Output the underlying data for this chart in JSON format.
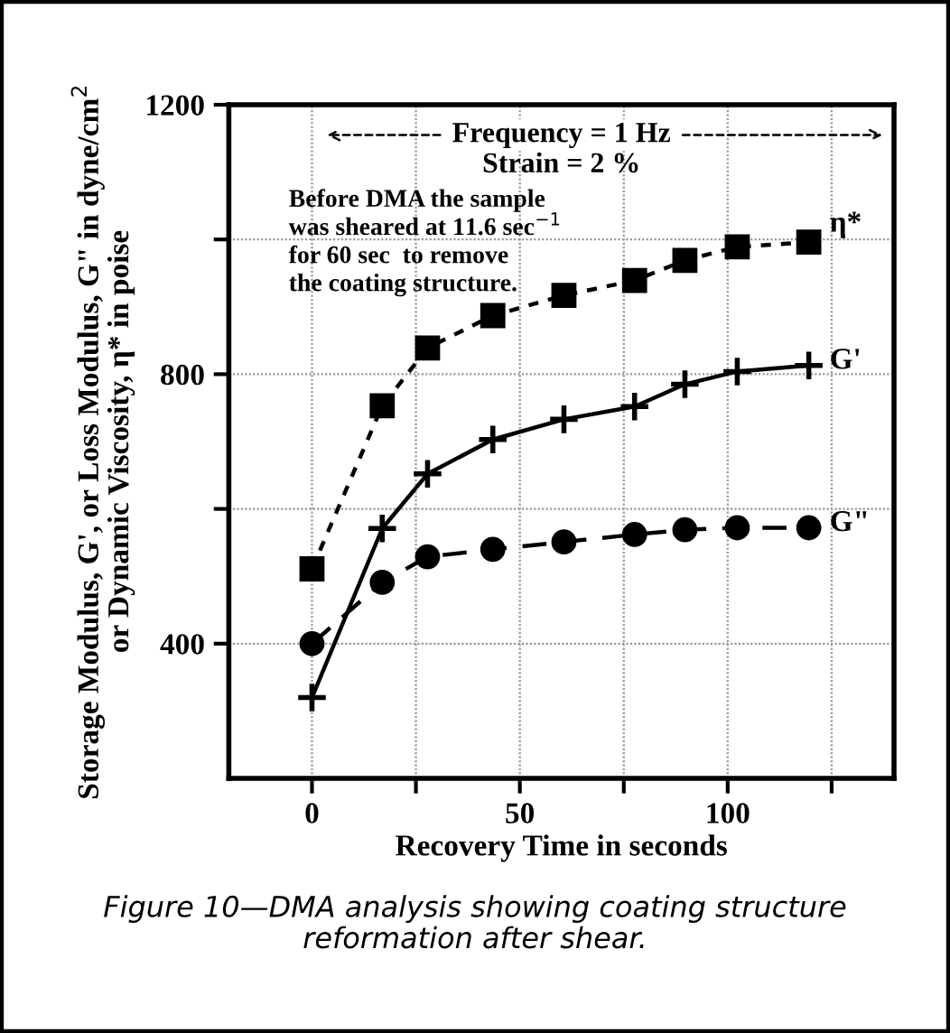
{
  "chart_data": {
    "type": "line",
    "xlabel": "Recovery Time in seconds",
    "ylabel": "Storage Modulus, G', or Loss Modulus, G\" in dyne/cm$^{2}$\nor Dynamic Viscosity, η* in poise",
    "xlim": [
      -20,
      140
    ],
    "xticks": [
      0,
      {
        "value": 25,
        "label": null
      },
      50,
      {
        "value": 75,
        "label": null
      },
      100,
      {
        "value": 125,
        "label": null
      }
    ],
    "ylim": [
      200,
      1200
    ],
    "yticks": [
      400,
      {
        "value": 600,
        "label": null
      },
      800,
      {
        "value": 1000,
        "label": null
      },
      1200
    ],
    "grid": true,
    "legend": false,
    "series": [
      {
        "name": "η*",
        "color": "#000000",
        "marker": "square",
        "line_style": "dotted",
        "x": [
          0,
          16.9,
          27.8,
          43.5,
          60.6,
          77.6,
          89.7,
          102.3,
          119.5
        ],
        "values": [
          511,
          753,
          839,
          887,
          917,
          939,
          969,
          989,
          996
        ]
      },
      {
        "name": "G'",
        "color": "#000000",
        "marker": "cross",
        "line_style": "solid",
        "x": [
          0,
          16.9,
          27.8,
          43.5,
          60.6,
          77.6,
          89.7,
          102.3,
          119.5
        ],
        "values": [
          320,
          571,
          652,
          703,
          733,
          752,
          785,
          804,
          813
        ]
      },
      {
        "name": "G\"",
        "color": "#000000",
        "marker": "circle",
        "line_style": "dashed",
        "x": [
          0,
          16.9,
          27.8,
          43.5,
          60.6,
          77.6,
          89.7,
          102.3,
          119.5
        ],
        "values": [
          400,
          491,
          529,
          540,
          551,
          562,
          569,
          572,
          572
        ]
      }
    ],
    "annotations": [
      "Frequency = 1 Hz",
      "Strain = 2 %",
      "Before DMA the sample\nwas sheared at 11.6 sec$^{−1}$\nfor 60 sec  to remove\nthe coating structure.",
      "Figure 10—DMA analysis showing coating structure\nreformation after shear."
    ]
  }
}
